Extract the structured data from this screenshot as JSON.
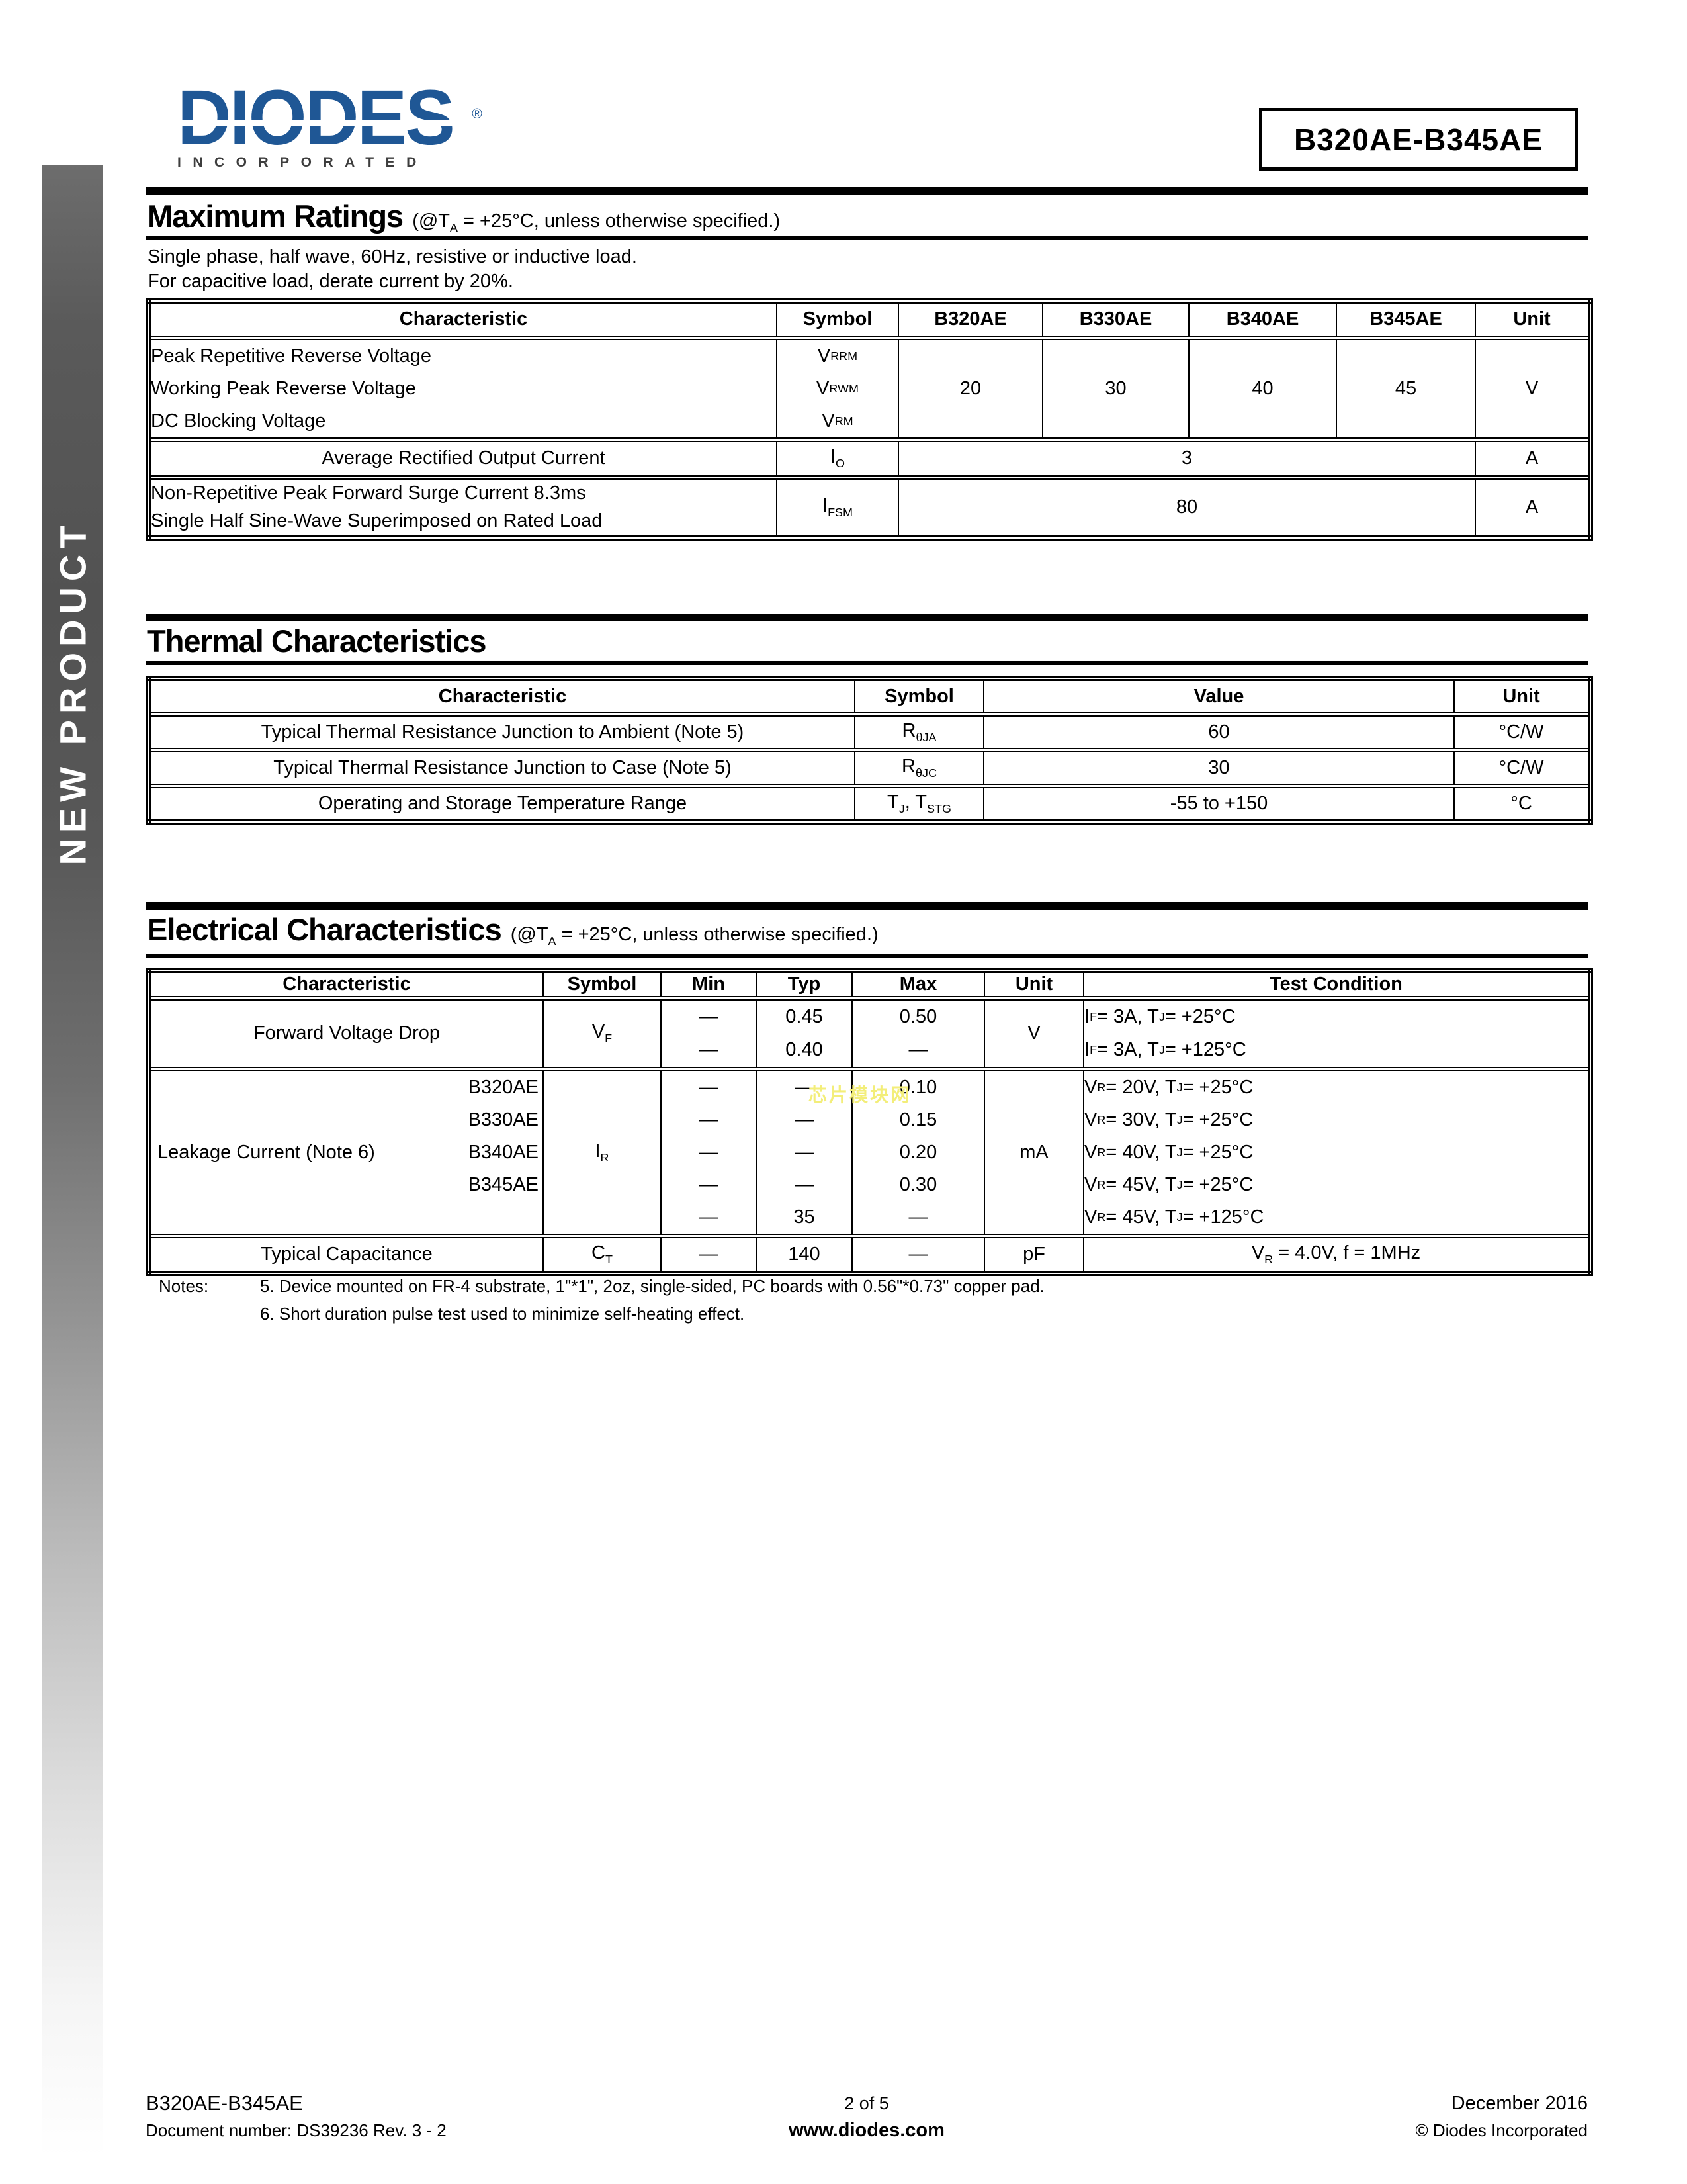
{
  "colors": {
    "brand_blue": "#1f5795",
    "watermark_yellow": "#f3ee7a"
  },
  "logo": {
    "brand": "DIODES",
    "registered": "®",
    "sub": "INCORPORATED"
  },
  "part_box": {
    "label": "B320AE-B345AE"
  },
  "sidebar": {
    "label": "NEW PRODUCT"
  },
  "watermark": {
    "text": "芯片模块网"
  },
  "max_ratings": {
    "title": "Maximum Ratings",
    "subtitle_rich": [
      {
        "t": "(@T"
      },
      {
        "s": "A"
      },
      {
        "t": " = +25°C, unless otherwise specified.)"
      }
    ],
    "intro_line1": "Single phase, half wave, 60Hz, resistive or inductive load.",
    "intro_line2": "For capacitive load, derate current by 20%.",
    "headers": [
      "Characteristic",
      "Symbol",
      "B320AE",
      "B330AE",
      "B340AE",
      "B345AE",
      "Unit"
    ],
    "row_voltage": {
      "lines": [
        "Peak Repetitive Reverse Voltage",
        "Working Peak Reverse Voltage",
        "DC Blocking Voltage"
      ],
      "symbols": [
        [
          {
            "t": "V"
          },
          {
            "s": "RRM"
          }
        ],
        [
          {
            "t": "V"
          },
          {
            "s": "RWM"
          }
        ],
        [
          {
            "t": "V"
          },
          {
            "s": "RM"
          }
        ]
      ],
      "values": [
        "20",
        "30",
        "40",
        "45"
      ],
      "unit": "V"
    },
    "row_io": {
      "label": "Average Rectified Output Current",
      "symbol": [
        {
          "t": "I"
        },
        {
          "s": "O"
        }
      ],
      "value": "3",
      "unit": "A"
    },
    "row_ifsm": {
      "lines": [
        "Non-Repetitive Peak Forward Surge Current 8.3ms",
        "Single Half Sine-Wave Superimposed on Rated Load"
      ],
      "symbol": [
        {
          "t": "I"
        },
        {
          "s": "FSM"
        }
      ],
      "value": "80",
      "unit": "A"
    }
  },
  "thermal": {
    "title": "Thermal Characteristics",
    "headers": [
      "Characteristic",
      "Symbol",
      "Value",
      "Unit"
    ],
    "rows": [
      {
        "label": "Typical Thermal Resistance Junction to Ambient (Note 5)",
        "symbol": [
          {
            "t": "R"
          },
          {
            "s": "θJA"
          }
        ],
        "value": "60",
        "unit": "°C/W"
      },
      {
        "label": "Typical Thermal Resistance Junction to Case (Note 5)",
        "symbol": [
          {
            "t": "R"
          },
          {
            "s": "θJC"
          }
        ],
        "value": "30",
        "unit": "°C/W"
      },
      {
        "label": "Operating and Storage Temperature Range",
        "symbol": [
          {
            "t": "T"
          },
          {
            "s": "J"
          },
          {
            "t": ", T"
          },
          {
            "s": "STG"
          }
        ],
        "value": "-55 to +150",
        "unit": "°C"
      }
    ]
  },
  "electrical": {
    "title": "Electrical Characteristics",
    "subtitle_rich": [
      {
        "t": "(@T"
      },
      {
        "s": "A"
      },
      {
        "t": " = +25°C, unless otherwise specified.)"
      }
    ],
    "headers": [
      "Characteristic",
      "Symbol",
      "Min",
      "Typ",
      "Max",
      "Unit",
      "Test Condition"
    ],
    "row_vf": {
      "label": "Forward Voltage Drop",
      "symbol": [
        {
          "t": "V"
        },
        {
          "s": "F"
        }
      ],
      "min": [
        "—",
        "—"
      ],
      "typ": [
        "0.45",
        "0.40"
      ],
      "max": [
        "0.50",
        "—"
      ],
      "unit": "V",
      "test": [
        [
          {
            "t": "I"
          },
          {
            "s": "F"
          },
          {
            "t": " = 3A, T"
          },
          {
            "s": "J"
          },
          {
            "t": " = +25°C"
          }
        ],
        [
          {
            "t": "I"
          },
          {
            "s": "F"
          },
          {
            "t": " = 3A, T"
          },
          {
            "s": "J"
          },
          {
            "t": " = +125°C"
          }
        ]
      ]
    },
    "row_ir": {
      "label": "Leakage Current (Note 6)",
      "sublabels": [
        "B320AE",
        "B330AE",
        "B340AE",
        "B345AE",
        ""
      ],
      "symbol": [
        {
          "t": "I"
        },
        {
          "s": "R"
        }
      ],
      "min": [
        "—",
        "—",
        "—",
        "—",
        "—"
      ],
      "typ": [
        "—",
        "—",
        "—",
        "—",
        "35"
      ],
      "max": [
        "0.10",
        "0.15",
        "0.20",
        "0.30",
        "—"
      ],
      "unit": "mA",
      "test": [
        [
          {
            "t": "V"
          },
          {
            "s": "R"
          },
          {
            "t": " = 20V, T"
          },
          {
            "s": "J"
          },
          {
            "t": " = +25°C"
          }
        ],
        [
          {
            "t": "V"
          },
          {
            "s": "R"
          },
          {
            "t": " = 30V, T"
          },
          {
            "s": "J"
          },
          {
            "t": " = +25°C"
          }
        ],
        [
          {
            "t": "V"
          },
          {
            "s": "R"
          },
          {
            "t": " = 40V, T"
          },
          {
            "s": "J"
          },
          {
            "t": " = +25°C"
          }
        ],
        [
          {
            "t": "V"
          },
          {
            "s": "R"
          },
          {
            "t": " = 45V, T"
          },
          {
            "s": "J"
          },
          {
            "t": " = +25°C"
          }
        ],
        [
          {
            "t": "V"
          },
          {
            "s": "R"
          },
          {
            "t": " = 45V, T"
          },
          {
            "s": "J"
          },
          {
            "t": " = +125°C"
          }
        ]
      ]
    },
    "row_ct": {
      "label": "Typical Capacitance",
      "symbol": [
        {
          "t": "C"
        },
        {
          "s": "T"
        }
      ],
      "min": "—",
      "typ": "140",
      "max": "—",
      "unit": "pF",
      "test": [
        [
          {
            "t": "V"
          },
          {
            "s": "R"
          },
          {
            "t": " = 4.0V, f = 1MHz"
          }
        ]
      ]
    }
  },
  "notes": {
    "label": "Notes:",
    "items": [
      "5. Device mounted on FR-4 substrate, 1\"*1\", 2oz, single-sided, PC boards with 0.56\"*0.73\" copper pad.",
      "6. Short duration pulse test used to minimize self-heating effect."
    ]
  },
  "footer": {
    "part": "B320AE-B345AE",
    "doc": "Document number: DS39236  Rev. 3 - 2",
    "page": "2 of 5",
    "site": "www.diodes.com",
    "date": "December 2016",
    "copyright": "© Diodes Incorporated"
  }
}
